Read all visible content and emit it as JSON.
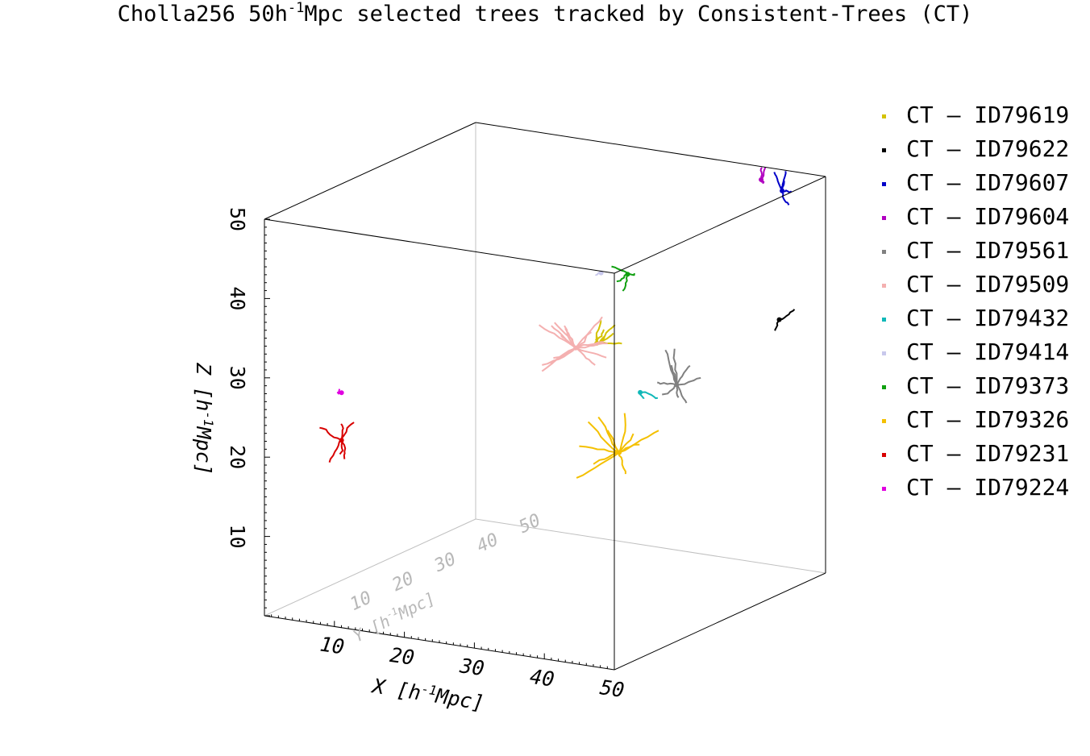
{
  "title": {
    "pre": "Cholla256 50h",
    "sup": "-1",
    "post": "Mpc selected trees tracked by Consistent-Trees (CT)"
  },
  "legend": [
    {
      "label": "CT – ID79619",
      "color": "#d4c200"
    },
    {
      "label": "CT – ID79622",
      "color": "#000000"
    },
    {
      "label": "CT – ID79607",
      "color": "#0000c8"
    },
    {
      "label": "CT – ID79604",
      "color": "#b000c0"
    },
    {
      "label": "CT – ID79561",
      "color": "#808080"
    },
    {
      "label": "CT – ID79509",
      "color": "#f4b0b0"
    },
    {
      "label": "CT – ID79432",
      "color": "#10b8b8"
    },
    {
      "label": "CT – ID79414",
      "color": "#c8c8ec"
    },
    {
      "label": "CT – ID79373",
      "color": "#10a010"
    },
    {
      "label": "CT – ID79326",
      "color": "#f4c000"
    },
    {
      "label": "CT – ID79231",
      "color": "#d80000"
    },
    {
      "label": "CT – ID79224",
      "color": "#e000e0"
    }
  ],
  "chart_data": {
    "type": "scatter",
    "title": "Cholla256 50h^-1Mpc selected trees tracked by Consistent-Trees (CT)",
    "projection": "3d",
    "grid": false,
    "legend_position": "right",
    "axes": {
      "x": {
        "label": "X [h^-1Mpc]",
        "ticks": [
          10,
          20,
          30,
          40,
          50
        ],
        "range": [
          0,
          50
        ]
      },
      "y": {
        "label": "Y [h^-1Mpc]",
        "ticks": [
          10,
          20,
          30,
          40,
          50
        ],
        "range": [
          0,
          50
        ]
      },
      "z": {
        "label": "Z [h^-1Mpc]",
        "ticks": [
          10,
          20,
          30,
          40,
          50
        ],
        "range": [
          0,
          50
        ]
      }
    },
    "series": [
      {
        "name": "CT – ID79619",
        "color": "#d4c200",
        "x": 33,
        "y": 24,
        "z": 33
      },
      {
        "name": "CT – ID79622",
        "color": "#000000",
        "x": 47,
        "y": 44,
        "z": 33
      },
      {
        "name": "CT – ID79607",
        "color": "#0000c8",
        "x": 45,
        "y": 48,
        "z": 48
      },
      {
        "name": "CT – ID79604",
        "color": "#b000c0",
        "x": 42,
        "y": 48,
        "z": 49
      },
      {
        "name": "CT – ID79561",
        "color": "#808080",
        "x": 42,
        "y": 28,
        "z": 28
      },
      {
        "name": "CT – ID79509",
        "color": "#f4b0b0",
        "x": 30,
        "y": 24,
        "z": 32
      },
      {
        "name": "CT – ID79432",
        "color": "#10b8b8",
        "x": 38,
        "y": 26,
        "z": 27
      },
      {
        "name": "CT – ID79414",
        "color": "#c8c8ec",
        "x": 30,
        "y": 30,
        "z": 40
      },
      {
        "name": "CT – ID79373",
        "color": "#10a010",
        "x": 35,
        "y": 28,
        "z": 41
      },
      {
        "name": "CT – ID79326",
        "color": "#f4c000",
        "x": 35,
        "y": 26,
        "z": 19
      },
      {
        "name": "CT – ID79231",
        "color": "#d80000",
        "x": 8,
        "y": 5,
        "z": 22
      },
      {
        "name": "CT – ID79224",
        "color": "#e000e0",
        "x": 8,
        "y": 5,
        "z": 28
      }
    ]
  }
}
